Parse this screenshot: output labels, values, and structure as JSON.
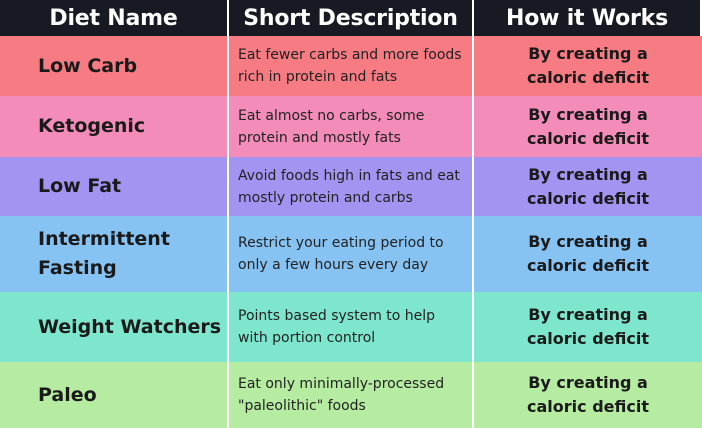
{
  "headers": {
    "diet_name": "Diet Name",
    "short_description": "Short Description",
    "how_it_works": "How it Works"
  },
  "colors": {
    "header_bg": "#171a22",
    "row_low_carb": "#f77b83",
    "row_ketogenic": "#f48cb9",
    "row_low_fat": "#a394f2",
    "row_intermittent_fasting": "#86c3f3",
    "row_weight_watchers": "#7de6cc",
    "row_paleo": "#b5eca1"
  },
  "rows": [
    {
      "name": "Low Carb",
      "description": "Eat fewer carbs and more foods\nrich in protein and fats",
      "how": "By creating a\ncaloric deficit",
      "color": "#f77b83"
    },
    {
      "name": "Ketogenic",
      "description": "Eat almost no carbs, some\nprotein and mostly fats",
      "how": "By creating a\ncaloric deficit",
      "color": "#f48cb9"
    },
    {
      "name": "Low Fat",
      "description": "Avoid foods high in fats and eat\nmostly protein and carbs",
      "how": "By creating a\ncaloric deficit",
      "color": "#a394f2"
    },
    {
      "name": "Intermittent\nFasting",
      "description": "Restrict your eating period to\nonly a few hours every day",
      "how": "By creating a\ncaloric deficit",
      "color": "#86c3f3"
    },
    {
      "name": "Weight Watchers",
      "description": "Points based system to help\nwith portion control",
      "how": "By creating a\ncaloric deficit",
      "color": "#7de6cc"
    },
    {
      "name": "Paleo",
      "description": "Eat only minimally-processed\n\"paleolithic\" foods",
      "how": "By creating a\ncaloric deficit",
      "color": "#b5eca1"
    }
  ]
}
